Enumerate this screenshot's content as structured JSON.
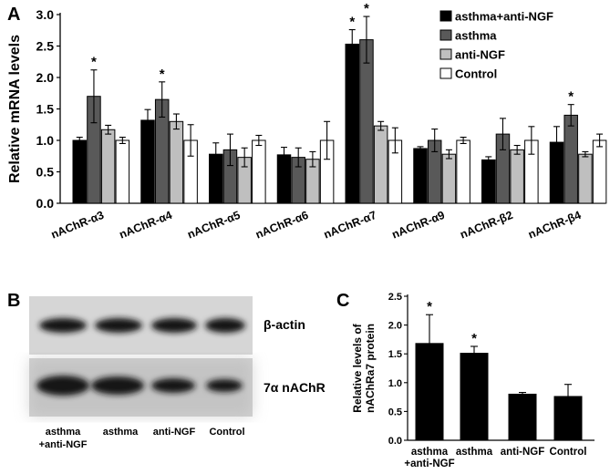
{
  "figure": {
    "panel_labels": [
      "A",
      "B",
      "C"
    ]
  },
  "chart_data": [
    {
      "panel": "A",
      "type": "bar",
      "ylabel": "Relative mRNA levels",
      "ylim": [
        0,
        3.0
      ],
      "yticks": [
        "0.0",
        "0.5",
        "1.0",
        "1.5",
        "2.0",
        "2.5",
        "3.0"
      ],
      "categories": [
        "nAChR-α3",
        "nAChR-α4",
        "nAChR-α5",
        "nAChR-α6",
        "nAChR-α7",
        "nAChR-α9",
        "nAChR-β2",
        "nAChR-β4"
      ],
      "legend_position": "top-right",
      "series": [
        {
          "name": "asthma+anti-NGF",
          "color": "#000000",
          "values": [
            1.0,
            1.32,
            0.78,
            0.77,
            2.53,
            0.87,
            0.69,
            0.97
          ],
          "errors": [
            0.05,
            0.17,
            0.18,
            0.12,
            0.23,
            0.03,
            0.05,
            0.25
          ]
        },
        {
          "name": "asthma",
          "color": "#595959",
          "values": [
            1.7,
            1.65,
            0.85,
            0.73,
            2.6,
            1.0,
            1.1,
            1.4
          ],
          "errors": [
            0.42,
            0.28,
            0.25,
            0.15,
            0.37,
            0.18,
            0.25,
            0.17
          ]
        },
        {
          "name": "anti-NGF",
          "color": "#bfbfbf",
          "values": [
            1.17,
            1.3,
            0.73,
            0.7,
            1.23,
            0.78,
            0.85,
            0.78
          ],
          "errors": [
            0.07,
            0.12,
            0.15,
            0.12,
            0.07,
            0.07,
            0.07,
            0.04
          ]
        },
        {
          "name": "Control",
          "color": "#ffffff",
          "values": [
            1.0,
            1.0,
            1.0,
            1.0,
            1.0,
            1.0,
            1.0,
            1.0
          ],
          "errors": [
            0.05,
            0.25,
            0.08,
            0.3,
            0.2,
            0.05,
            0.22,
            0.1
          ]
        }
      ],
      "significance": [
        {
          "category": 0,
          "series": 1,
          "label": "*"
        },
        {
          "category": 1,
          "series": 1,
          "label": "*"
        },
        {
          "category": 4,
          "series": 0,
          "label": "*"
        },
        {
          "category": 4,
          "series": 1,
          "label": "*"
        },
        {
          "category": 7,
          "series": 1,
          "label": "*"
        }
      ]
    },
    {
      "panel": "C",
      "type": "bar",
      "ylabel_lines": [
        "Relative levels of",
        "nAChRa7 protein"
      ],
      "ylim": [
        0,
        2.5
      ],
      "yticks": [
        "0.0",
        "0.5",
        "1.0",
        "1.5",
        "2.0",
        "2.5"
      ],
      "categories": [
        [
          "asthma",
          "+anti-NGF"
        ],
        [
          "asthma"
        ],
        [
          "anti-NGF"
        ],
        [
          "Control"
        ]
      ],
      "values": [
        1.68,
        1.51,
        0.8,
        0.76
      ],
      "errors": [
        0.5,
        0.12,
        0.03,
        0.21
      ],
      "significance": [
        {
          "category": 0,
          "label": "*"
        },
        {
          "category": 1,
          "label": "*"
        }
      ]
    }
  ],
  "western_blot": {
    "panel": "B",
    "band_rows": [
      {
        "label": "β-actin"
      },
      {
        "label": "7α nAChR"
      }
    ],
    "lanes": [
      [
        "asthma",
        "+anti-NGF"
      ],
      [
        "asthma"
      ],
      [
        "anti-NGF"
      ],
      [
        "Control"
      ]
    ]
  }
}
